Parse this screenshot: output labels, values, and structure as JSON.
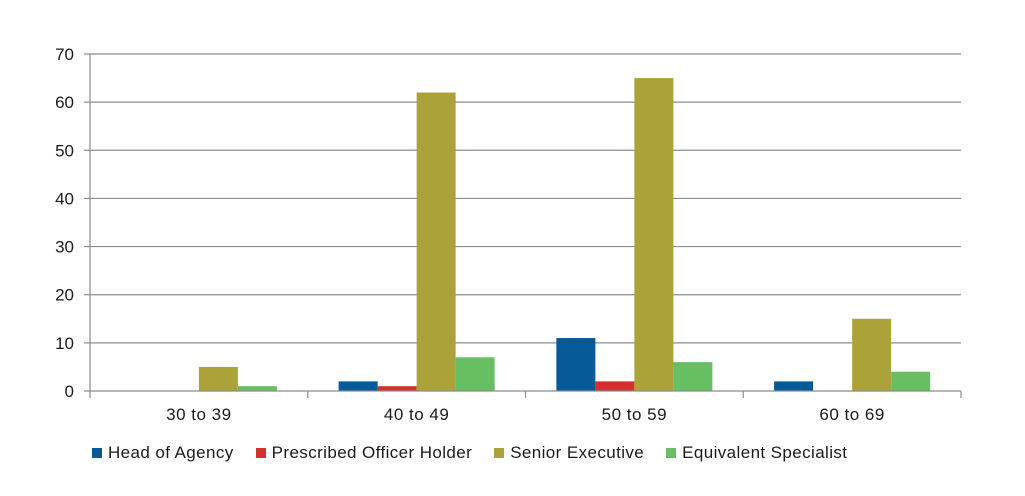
{
  "chart_data": {
    "type": "bar",
    "title": "",
    "xlabel": "",
    "ylabel": "",
    "categories": [
      "30 to 39",
      "40 to 49",
      "50 to 59",
      "60 to 69"
    ],
    "series": [
      {
        "name": "Head of Agency",
        "color": "#065a9a",
        "values": [
          0,
          2,
          11,
          2
        ]
      },
      {
        "name": "Prescribed Officer Holder",
        "color": "#d2322d",
        "values": [
          0,
          1,
          2,
          0
        ]
      },
      {
        "name": "Senior Executive",
        "color": "#aca23a",
        "values": [
          5,
          62,
          65,
          15
        ]
      },
      {
        "name": "Equivalent Specialist",
        "color": "#68bf63",
        "values": [
          1,
          7,
          6,
          4
        ]
      }
    ],
    "ylim": [
      0,
      70
    ],
    "yticks": [
      0,
      10,
      20,
      30,
      40,
      50,
      60,
      70
    ],
    "grid": true,
    "legend_position": "bottom"
  }
}
